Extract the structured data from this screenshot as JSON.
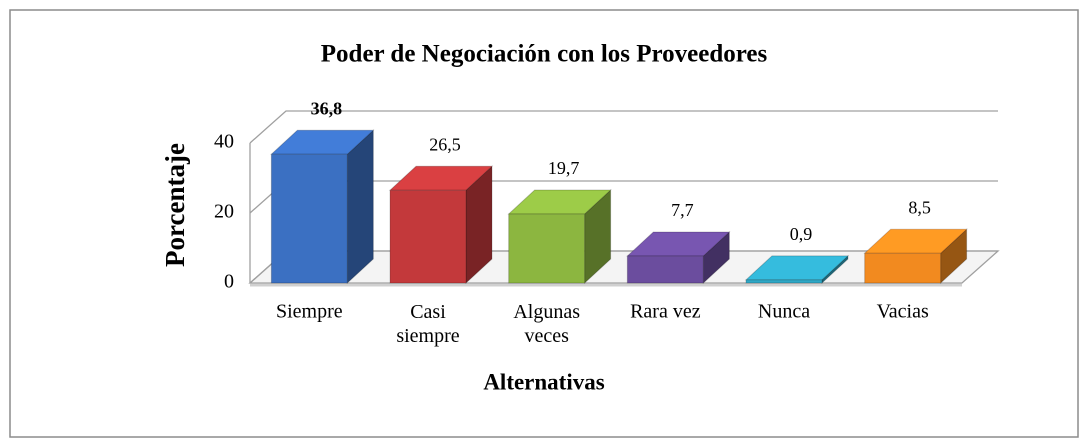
{
  "chart_data": {
    "type": "bar3d",
    "title": "Poder de Negociación con los Proveedores",
    "x_label": "Alternativas",
    "y_label": "Porcentaje",
    "categories": [
      "Siempre",
      "Casi siempre",
      "Algunas veces",
      "Rara vez",
      "Nunca",
      "Vacias"
    ],
    "values": [
      36.8,
      26.5,
      19.7,
      7.7,
      0.9,
      8.5
    ],
    "value_labels": [
      "36,8",
      "26,5",
      "19,7",
      "7,7",
      "0,9",
      "8,5"
    ],
    "colors": [
      "#3b70c2",
      "#c3393b",
      "#8cb640",
      "#6b4d9e",
      "#2fa8c6",
      "#f28a1f"
    ],
    "ylim": [
      0,
      40
    ],
    "yticks": [
      0,
      20,
      40
    ],
    "grid": true
  }
}
